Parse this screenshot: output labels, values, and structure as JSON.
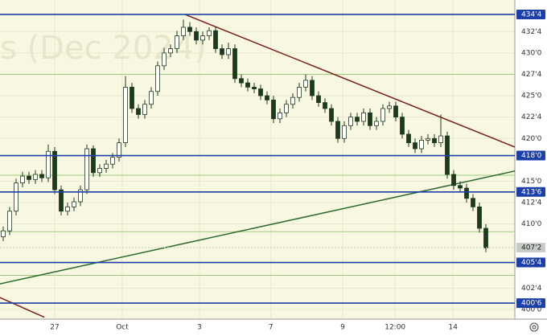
{
  "chart_data": {
    "type": "candlestick",
    "watermark": "s (Dec 2024)",
    "background": "#f8f8e2",
    "up_color": "#ffffff",
    "down_color": "#1e3a1e",
    "wick_color": "#1e3a1e",
    "xlim": [
      -0.5,
      79.5
    ],
    "xticks": [
      {
        "value": 8,
        "label": "27"
      },
      {
        "value": 18.5,
        "label": "Oct"
      },
      {
        "value": 30.5,
        "label": "3"
      },
      {
        "value": 41.6,
        "label": "7"
      },
      {
        "value": 52.75,
        "label": "9"
      },
      {
        "value": 60.9,
        "label": "12:00"
      },
      {
        "value": 69.9,
        "label": "14"
      }
    ],
    "ylim": [
      398.88,
      436.19
    ],
    "yticks": [
      {
        "value": 432.5,
        "label": "432'4"
      },
      {
        "value": 430,
        "label": "430'0"
      },
      {
        "value": 427.5,
        "label": "427'4"
      },
      {
        "value": 425,
        "label": "425'0"
      },
      {
        "value": 422.5,
        "label": "422'4"
      },
      {
        "value": 420,
        "label": "420'0"
      },
      {
        "value": 415,
        "label": "415'0"
      },
      {
        "value": 412.5,
        "label": "412'4"
      },
      {
        "value": 410,
        "label": "410'0"
      },
      {
        "value": 402.5,
        "label": "402'4"
      },
      {
        "value": 400,
        "label": "400'0"
      }
    ],
    "grid": true,
    "open": [
      408.5,
      409.2,
      411.5,
      414.8,
      415.6,
      415.2,
      415.8,
      415.4,
      418.5,
      414.0,
      411.5,
      412.0,
      412.6,
      414.0,
      418.8,
      416.0,
      416.5,
      417.0,
      417.8,
      419.5,
      426.0,
      423.5,
      422.8,
      424.0,
      425.5,
      428.5,
      430.0,
      430.5,
      432.0,
      433.0,
      432.5,
      431.5,
      432.0,
      432.6,
      430.5,
      429.8,
      430.5,
      427.0,
      426.5,
      426.0,
      425.8,
      425.0,
      424.5,
      422.3,
      423.0,
      424.0,
      424.8,
      426.0,
      426.8,
      425.0,
      424.2,
      423.5,
      422.0,
      420.0,
      421.5,
      422.5,
      422.0,
      423.0,
      421.5,
      422.0,
      423.5,
      423.8,
      422.5,
      420.5,
      419.5,
      418.8,
      419.8,
      420.0,
      419.5,
      420.3,
      415.8,
      414.5,
      414.2,
      413.0,
      412.0,
      409.5
    ],
    "high": [
      409.7,
      412.0,
      415.3,
      416.1,
      416.1,
      416.3,
      416.3,
      419.3,
      419.0,
      414.5,
      412.5,
      413.1,
      414.5,
      419.3,
      419.2,
      417.0,
      417.5,
      418.3,
      420.0,
      427.3,
      426.5,
      424.0,
      424.5,
      426.0,
      429.0,
      430.6,
      431.0,
      432.6,
      433.9,
      433.6,
      433.0,
      432.5,
      433.0,
      433.0,
      431.0,
      431.2,
      431.0,
      427.5,
      427.0,
      426.5,
      426.3,
      425.5,
      425.0,
      423.5,
      424.5,
      425.3,
      426.5,
      427.5,
      427.3,
      425.5,
      424.7,
      424.0,
      422.5,
      422.0,
      423.0,
      423.0,
      423.5,
      423.5,
      422.5,
      424.0,
      424.3,
      424.3,
      423.0,
      421.0,
      420.0,
      420.3,
      420.5,
      420.5,
      422.8,
      420.8,
      416.3,
      415.0,
      414.7,
      413.5,
      412.5,
      410.0
    ],
    "low": [
      408.0,
      408.7,
      411.0,
      414.3,
      414.7,
      414.7,
      414.9,
      414.9,
      413.5,
      411.0,
      411.0,
      411.5,
      412.1,
      413.5,
      415.5,
      415.5,
      416.0,
      416.5,
      417.3,
      419.0,
      423.0,
      422.3,
      422.3,
      423.5,
      425.0,
      428.0,
      429.5,
      430.0,
      431.5,
      432.0,
      431.0,
      431.0,
      431.5,
      430.0,
      429.3,
      429.3,
      426.5,
      426.0,
      425.5,
      425.3,
      424.5,
      424.0,
      421.8,
      421.8,
      422.5,
      423.5,
      424.3,
      425.5,
      424.5,
      423.7,
      423.0,
      421.5,
      419.5,
      419.5,
      421.0,
      421.5,
      421.5,
      421.0,
      421.0,
      421.5,
      423.0,
      422.0,
      420.0,
      419.0,
      418.3,
      418.3,
      419.3,
      419.0,
      419.0,
      415.3,
      414.0,
      413.7,
      412.5,
      411.5,
      409.0,
      406.7
    ],
    "close": [
      409.2,
      411.5,
      414.8,
      415.6,
      415.2,
      415.8,
      415.4,
      418.5,
      414.0,
      411.5,
      412.0,
      412.6,
      414.0,
      418.8,
      416.0,
      416.5,
      417.0,
      417.8,
      419.5,
      426.0,
      423.5,
      422.8,
      424.0,
      425.5,
      428.5,
      430.0,
      430.5,
      432.0,
      433.0,
      432.5,
      431.5,
      432.0,
      432.6,
      430.5,
      429.8,
      430.5,
      427.0,
      426.5,
      426.0,
      425.8,
      425.0,
      424.5,
      422.3,
      423.0,
      424.0,
      424.8,
      426.0,
      426.8,
      425.0,
      424.2,
      423.5,
      422.0,
      420.0,
      421.5,
      422.5,
      422.0,
      423.0,
      421.5,
      422.0,
      423.5,
      423.8,
      422.5,
      420.5,
      419.5,
      418.8,
      419.8,
      420.0,
      419.5,
      420.3,
      415.8,
      414.5,
      414.2,
      413.0,
      412.0,
      409.5,
      407.2
    ],
    "levels": [
      {
        "value": 434.5,
        "label": "434'4",
        "color": "#1c3fa8"
      },
      {
        "value": 418.0,
        "label": "418'0",
        "color": "#1c3fa8"
      },
      {
        "value": 413.75,
        "label": "413'6",
        "color": "#1c3fa8"
      },
      {
        "value": 405.5,
        "label": "405'4",
        "color": "#1c3fa8"
      },
      {
        "value": 400.75,
        "label": "400'6",
        "color": "#1c3fa8"
      },
      {
        "value": 407.25,
        "label": "407'2",
        "color": "#c8ccc8"
      }
    ],
    "thin_levels": [
      427.5,
      415.7,
      409.1,
      404.0
    ],
    "thin_level_color": "#9ccc7a",
    "trend_lines": [
      {
        "color": "#7a1c1c",
        "x": [
          28.25,
          79.5
        ],
        "y": [
          434.5,
          419.0
        ]
      },
      {
        "color": "#2e6b2e",
        "x": [
          -0.5,
          79.5
        ],
        "y": [
          403.0,
          416.2
        ]
      },
      {
        "color": "#7a1c1c",
        "x": [
          -0.5,
          6.4
        ],
        "y": [
          401.4,
          399.1
        ]
      }
    ]
  }
}
